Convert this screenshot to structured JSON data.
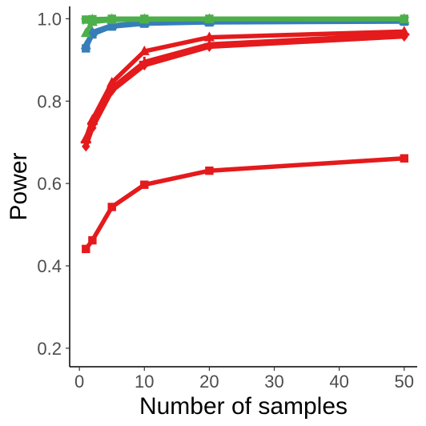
{
  "chart_data": {
    "type": "line",
    "title": "",
    "xlabel": "Number of samples",
    "ylabel": "Power",
    "xlim": [
      -1.5,
      52
    ],
    "ylim": [
      0.155,
      1.03
    ],
    "x_ticks": [
      0,
      10,
      20,
      30,
      40,
      50
    ],
    "y_ticks": [
      0.2,
      0.4,
      0.6,
      0.8,
      1.0
    ],
    "x_tick_labels": [
      "0",
      "10",
      "20",
      "30",
      "40",
      "50"
    ],
    "y_tick_labels": [
      "0.2",
      "0.4",
      "0.6",
      "0.8",
      "1.0"
    ],
    "grid": false,
    "legend": "none",
    "series": [
      {
        "color": "#e41a1c",
        "marker": "square",
        "x": [
          1,
          2,
          5,
          10,
          20,
          50
        ],
        "y": [
          0.441,
          0.462,
          0.543,
          0.597,
          0.631,
          0.661
        ]
      },
      {
        "color": "#e41a1c",
        "marker": "diamond",
        "x": [
          1,
          2,
          5,
          10,
          20,
          50
        ],
        "y": [
          0.69,
          0.735,
          0.825,
          0.887,
          0.932,
          0.957
        ]
      },
      {
        "color": "#e41a1c",
        "marker": "plus",
        "x": [
          1,
          2,
          5,
          10,
          20,
          50
        ],
        "y": [
          0.7,
          0.745,
          0.832,
          0.895,
          0.938,
          0.962
        ]
      },
      {
        "color": "#e41a1c",
        "marker": "triangle",
        "x": [
          1,
          2,
          5,
          10,
          20,
          50
        ],
        "y": [
          0.71,
          0.755,
          0.845,
          0.921,
          0.955,
          0.969
        ]
      },
      {
        "color": "#377eb8",
        "marker": "square",
        "x": [
          1,
          2,
          5,
          10,
          20,
          50
        ],
        "y": [
          0.928,
          0.962,
          0.981,
          0.988,
          0.991,
          0.993
        ]
      },
      {
        "color": "#377eb8",
        "marker": "triangle",
        "x": [
          1,
          2,
          5,
          10,
          20,
          50
        ],
        "y": [
          0.936,
          0.968,
          0.984,
          0.99,
          0.993,
          0.995
        ]
      },
      {
        "color": "#4daf4a",
        "marker": "triangle",
        "x": [
          1,
          2,
          5,
          10,
          20,
          50
        ],
        "y": [
          0.965,
          0.992,
          0.997,
          0.998,
          0.999,
          0.999
        ]
      },
      {
        "color": "#4daf4a",
        "marker": "square",
        "x": [
          1,
          2,
          5,
          10,
          20,
          50
        ],
        "y": [
          0.998,
          0.999,
          1.0,
          1.0,
          1.0,
          1.0
        ]
      },
      {
        "color": "#4daf4a",
        "marker": "star",
        "x": [
          1,
          2,
          5,
          10,
          20,
          50
        ],
        "y": [
          0.996,
          0.999,
          1.0,
          1.0,
          1.0,
          1.0
        ]
      }
    ]
  }
}
